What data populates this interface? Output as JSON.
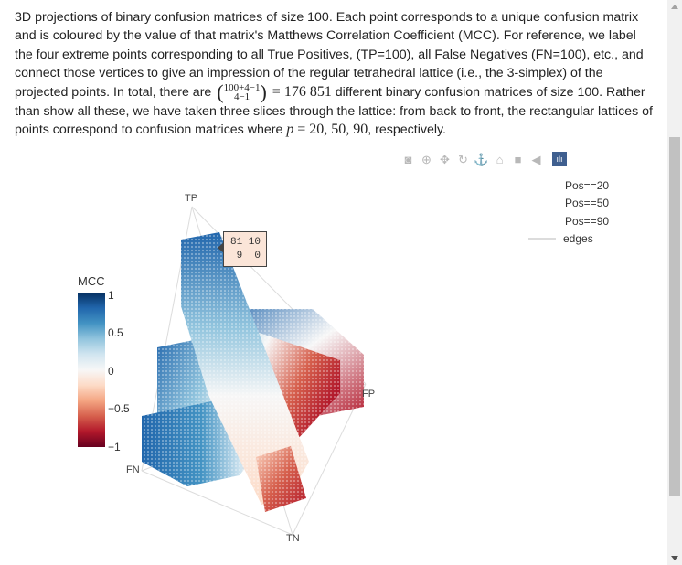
{
  "caption": {
    "p1": "3D projections of binary confusion matrices of size 100. Each point corresponds to a unique confusion matrix and is coloured by the value of that matrix's Matthews Correlation Coefficient (MCC). For reference, we label the four extreme points corresponding to all True Positives, (TP=100), all False Negatives (FN=100), etc., and connect those vertices to give an impression of the regular tetrahedral lattice (i.e., the 3-simplex) of the projected points. In total, there are",
    "binom_top": "100+4−1",
    "binom_bottom": "4−1",
    "eq": "= 176 851",
    "p2": "different binary confusion matrices of size 100. Rather than show all these, we have taken three slices through the lattice: from back to front, the rectangular lattices of points correspond to confusion matrices where",
    "p_var": "p",
    "p_vals": "= 20, 50, 90",
    "p3": ", respectively."
  },
  "modebar": {
    "icons": [
      "camera-icon",
      "zoom-icon",
      "pan-icon",
      "orbit-icon",
      "turntable-icon",
      "home-icon",
      "reset-camera-icon",
      "hover-icon",
      "plotly-logo-icon"
    ]
  },
  "legend": {
    "items": [
      "Pos==20",
      "Pos==50",
      "Pos==90",
      "edges"
    ]
  },
  "colorbar": {
    "title": "MCC",
    "ticks": [
      "1",
      "0.5",
      "0",
      "−0.5",
      "−1"
    ],
    "colorscale": [
      "#053061",
      "#2166ac",
      "#4393c3",
      "#92c5de",
      "#d1e5f0",
      "#f7f7f7",
      "#fddbc7",
      "#f4a582",
      "#d6604d",
      "#b2182b",
      "#67001f"
    ]
  },
  "vertices": {
    "tp": "TP",
    "fp": "FP",
    "fn": "FN",
    "tn": "TN"
  },
  "tooltip": {
    "row1": "81 10",
    "row2": " 9  0"
  },
  "chart_data": {
    "type": "scatter3d",
    "title": "",
    "colorbar_title": "MCC",
    "color_range": [
      -1,
      1
    ],
    "color_ticks": [
      1,
      0.5,
      0,
      -0.5,
      -1
    ],
    "vertex_labels": [
      "TP",
      "FP",
      "FN",
      "TN"
    ],
    "series": [
      {
        "name": "Pos==20"
      },
      {
        "name": "Pos==50"
      },
      {
        "name": "Pos==90"
      },
      {
        "name": "edges"
      }
    ],
    "hover_point": {
      "matrix": [
        [
          81,
          10
        ],
        [
          9,
          0
        ]
      ]
    }
  }
}
